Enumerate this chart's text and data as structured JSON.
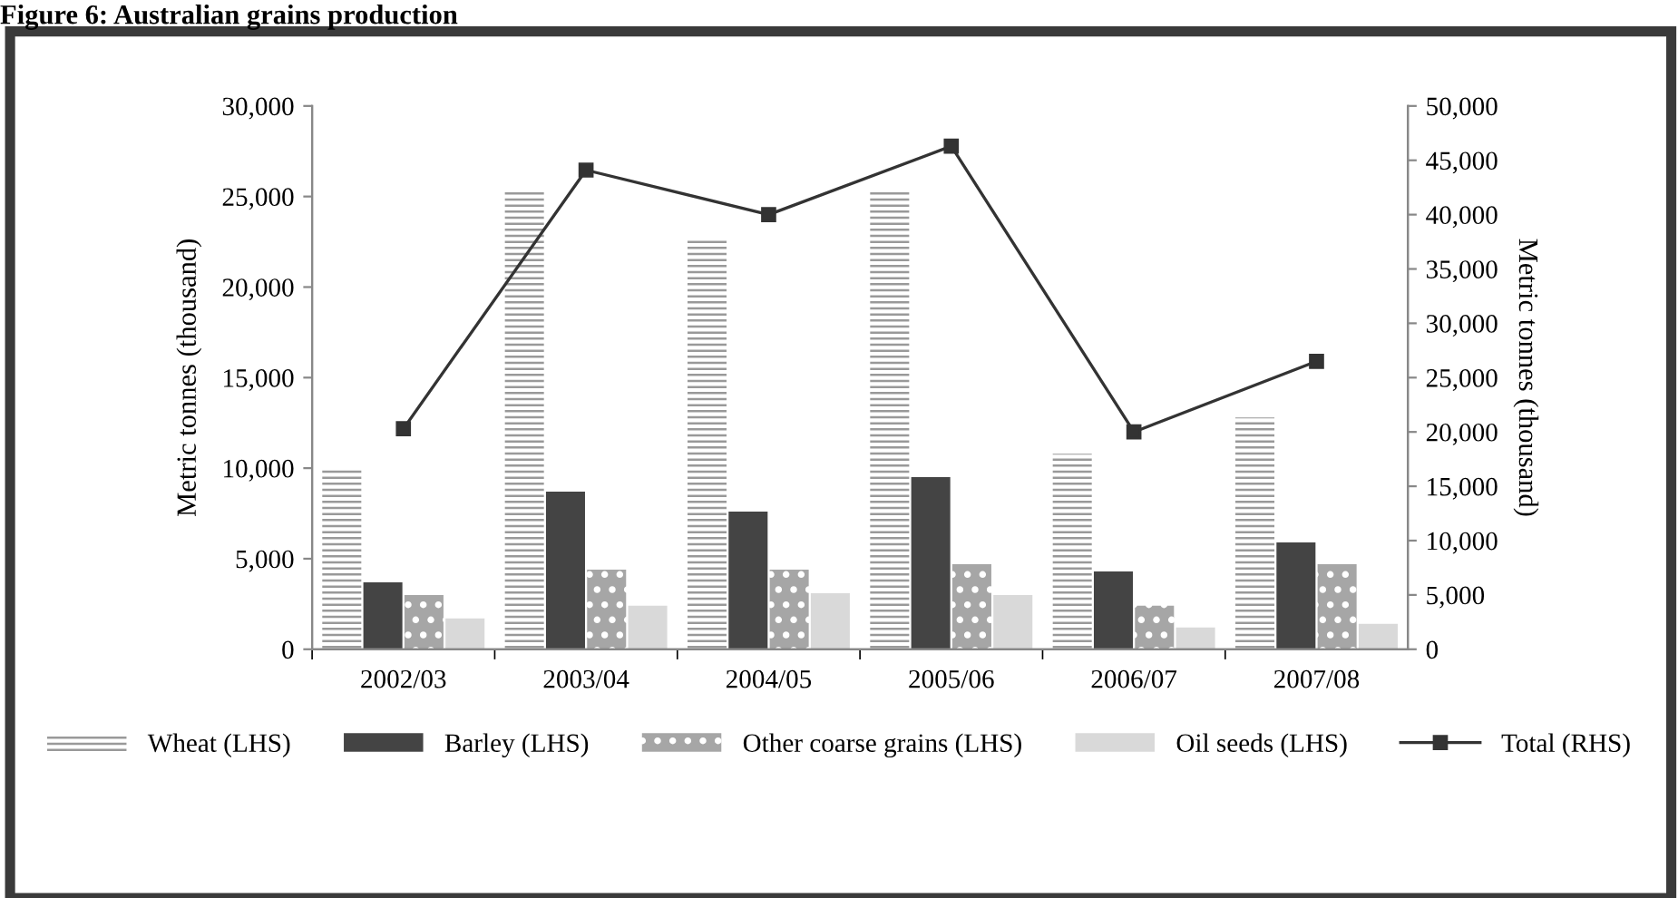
{
  "chart_data": {
    "type": "bar",
    "title": "Figure 6: Australian grains production",
    "ylabel": "Metric tonnes (thousand)",
    "y2label": "Metric tonnes (thousand)",
    "categories": [
      "2002/03",
      "2003/04",
      "2004/05",
      "2005/06",
      "2006/07",
      "2007/08"
    ],
    "series": [
      {
        "name": "Wheat (LHS)",
        "color": "#999999",
        "values": [
          9900,
          25400,
          22600,
          25400,
          10800,
          12800
        ]
      },
      {
        "name": "Barley (LHS)",
        "color": "#444444",
        "values": [
          3700,
          8700,
          7600,
          9500,
          4300,
          5900
        ]
      },
      {
        "name": "Other coarse grains (LHS)",
        "color": "#a6a6a6",
        "values": [
          3000,
          4400,
          4400,
          4700,
          2400,
          4700
        ]
      },
      {
        "name": "Oil seeds (LHS)",
        "color": "#d9d9d9",
        "values": [
          1700,
          2400,
          3100,
          3000,
          1200,
          1400
        ]
      },
      {
        "name": "Total (RHS)",
        "type": "line",
        "axis": "y2",
        "color": "#333333",
        "marker": "square",
        "values": [
          20300,
          44100,
          40000,
          46300,
          20000,
          26500
        ]
      }
    ],
    "ylim": [
      0,
      30000
    ],
    "yticks": [
      {
        "value": 0,
        "label": "0"
      },
      {
        "value": 5000,
        "label": "5,000"
      },
      {
        "value": 10000,
        "label": "10,000"
      },
      {
        "value": 15000,
        "label": "15,000"
      },
      {
        "value": 20000,
        "label": "20,000"
      },
      {
        "value": 25000,
        "label": "25,000"
      },
      {
        "value": 30000,
        "label": "30,000"
      }
    ],
    "y2lim": [
      0,
      50000
    ],
    "y2ticks": [
      {
        "value": 0,
        "label": "0"
      },
      {
        "value": 5000,
        "label": "5,000"
      },
      {
        "value": 10000,
        "label": "10,000"
      },
      {
        "value": 15000,
        "label": "15,000"
      },
      {
        "value": 20000,
        "label": "20,000"
      },
      {
        "value": 25000,
        "label": "25,000"
      },
      {
        "value": 30000,
        "label": "30,000"
      },
      {
        "value": 35000,
        "label": "35,000"
      },
      {
        "value": 40000,
        "label": "40,000"
      },
      {
        "value": 45000,
        "label": "45,000"
      },
      {
        "value": 50000,
        "label": "50,000"
      }
    ],
    "grid": false,
    "legend": "bottom"
  }
}
